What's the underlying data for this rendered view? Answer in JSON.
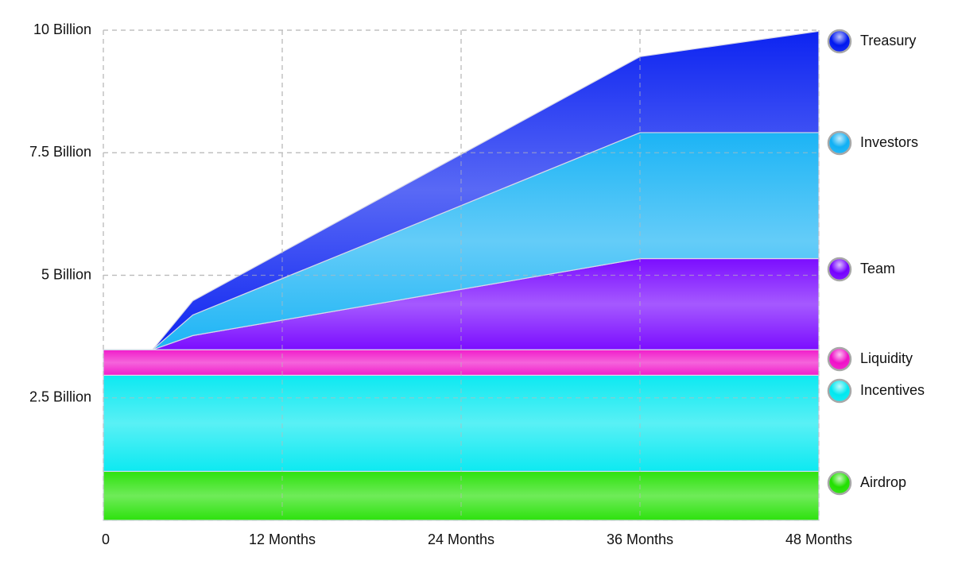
{
  "chart_data": {
    "type": "stacked-area",
    "x": [
      0,
      3.3,
      6,
      36,
      48
    ],
    "xlim": [
      0,
      48
    ],
    "xticks": [
      0,
      {
        "value": 12,
        "label": "12 Months"
      },
      {
        "value": 24,
        "label": "24 Months"
      },
      {
        "value": 36,
        "label": "36 Months"
      },
      {
        "value": 48,
        "label": "48 Months"
      }
    ],
    "ylim": [
      0,
      10
    ],
    "yticks": [
      {
        "value": 2.5,
        "label": "2.5 Billion"
      },
      {
        "value": 5,
        "label": "5 Billion"
      },
      {
        "value": 7.5,
        "label": "7.5 Billion"
      },
      {
        "value": 10,
        "label": "10 Billion"
      }
    ],
    "grid": true,
    "legend": "right",
    "series": [
      {
        "name": "Airdrop",
        "color": "#22e000",
        "values": [
          1,
          1,
          1,
          1,
          1
        ]
      },
      {
        "name": "Incentives",
        "color": "#00e8f0",
        "values": [
          1.96,
          1.96,
          1.96,
          1.96,
          1.96
        ]
      },
      {
        "name": "Liquidity",
        "color": "#f010c8",
        "values": [
          0.52,
          0.52,
          0.52,
          0.52,
          0.52
        ]
      },
      {
        "name": "Team",
        "color": "#7400ff",
        "values": [
          0,
          0,
          0.29,
          1.86,
          1.86
        ]
      },
      {
        "name": "Investors",
        "color": "#10b0f4",
        "values": [
          0,
          0,
          0.42,
          2.57,
          2.57
        ]
      },
      {
        "name": "Treasury",
        "color": "#0018f0",
        "values": [
          0,
          0,
          0.29,
          1.55,
          2.07
        ]
      }
    ]
  }
}
